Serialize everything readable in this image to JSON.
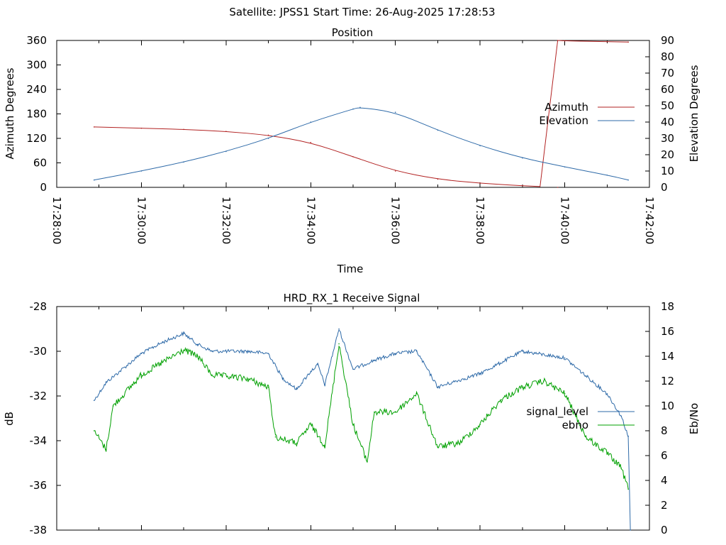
{
  "header": {
    "title": "Satellite: JPSS1    Start Time: 26-Aug-2025 17:28:53"
  },
  "colors": {
    "azimuth": "#b22222",
    "elevation": "#2e6aa8",
    "signal_level": "#2e6aa8",
    "ebno": "#00a000"
  },
  "chart_data": [
    {
      "type": "line",
      "title": "Position",
      "xlabel": "Time",
      "ylabel": "Azimuth Degrees",
      "y2label": "Elevation Degrees",
      "xlim": [
        "17:28:00",
        "17:42:00"
      ],
      "xticks": [
        "17:28:00",
        "17:30:00",
        "17:32:00",
        "17:34:00",
        "17:36:00",
        "17:38:00",
        "17:40:00",
        "17:42:00"
      ],
      "ylim": [
        0,
        360
      ],
      "yticks": [
        "0",
        "60",
        "120",
        "180",
        "240",
        "300",
        "360"
      ],
      "y2lim": [
        0,
        90
      ],
      "y2ticks": [
        "0",
        "10",
        "20",
        "30",
        "40",
        "50",
        "60",
        "70",
        "80",
        "90"
      ],
      "legend_position": "right",
      "grid": false,
      "series": [
        {
          "name": "Azimuth",
          "axis": "y",
          "x": [
            "17:28:53",
            "17:30:00",
            "17:31:00",
            "17:32:00",
            "17:33:00",
            "17:34:00",
            "17:35:00",
            "17:36:00",
            "17:37:00",
            "17:38:00",
            "17:39:00",
            "17:39:50",
            "17:39:50",
            "17:40:00",
            "17:41:00",
            "17:41:30"
          ],
          "values": [
            148,
            145,
            142,
            137,
            128,
            110,
            75,
            40,
            20,
            10,
            4,
            0,
            360,
            359,
            357,
            356
          ]
        },
        {
          "name": "Elevation",
          "axis": "y2",
          "x": [
            "17:28:53",
            "17:30:00",
            "17:31:00",
            "17:32:00",
            "17:33:00",
            "17:34:00",
            "17:35:00",
            "17:35:10",
            "17:36:00",
            "17:37:00",
            "17:38:00",
            "17:39:00",
            "17:40:00",
            "17:41:00",
            "17:41:30"
          ],
          "values": [
            4.5,
            10,
            15.5,
            22,
            30,
            40,
            48,
            49,
            46,
            35,
            25.5,
            18,
            12.5,
            7.5,
            4.5
          ]
        }
      ]
    },
    {
      "type": "line",
      "title": "HRD_RX_1 Receive Signal",
      "ylabel": "dB",
      "y2label": "Eb/No",
      "ylim": [
        -38,
        -28
      ],
      "yticks": [
        "-28",
        "-30",
        "-32",
        "-34",
        "-36",
        "-38"
      ],
      "y2lim": [
        0,
        18
      ],
      "y2ticks": [
        "0",
        "2",
        "4",
        "6",
        "8",
        "10",
        "12",
        "14",
        "16",
        "18"
      ],
      "legend_position": "right",
      "grid": false,
      "series": [
        {
          "name": "signal_level",
          "axis": "y",
          "x": [
            "17:28:53",
            "17:29:10",
            "17:30:00",
            "17:30:30",
            "17:31:00",
            "17:31:20",
            "17:31:40",
            "17:32:30",
            "17:33:00",
            "17:33:20",
            "17:33:40",
            "17:34:00",
            "17:34:10",
            "17:34:20",
            "17:34:40",
            "17:35:00",
            "17:35:30",
            "17:36:00",
            "17:36:30",
            "17:37:00",
            "17:38:00",
            "17:39:00",
            "17:40:00",
            "17:40:30",
            "17:41:00",
            "17:41:20",
            "17:41:30",
            "17:41:33"
          ],
          "values": [
            -32.2,
            -31.4,
            -30.1,
            -29.6,
            -29.2,
            -29.7,
            -30.0,
            -30.0,
            -30.1,
            -31.2,
            -31.7,
            -30.9,
            -30.6,
            -31.5,
            -29.0,
            -30.8,
            -30.4,
            -30.1,
            -30.0,
            -31.6,
            -31.0,
            -30.0,
            -30.3,
            -31.1,
            -31.9,
            -32.9,
            -33.8,
            -38.0
          ]
        },
        {
          "name": "ebno",
          "axis": "y2",
          "x": [
            "17:28:53",
            "17:29:10",
            "17:29:20",
            "17:30:00",
            "17:30:30",
            "17:31:00",
            "17:31:20",
            "17:31:40",
            "17:32:30",
            "17:33:00",
            "17:33:10",
            "17:33:40",
            "17:34:00",
            "17:34:20",
            "17:34:40",
            "17:35:00",
            "17:35:20",
            "17:35:30",
            "17:36:00",
            "17:36:30",
            "17:37:00",
            "17:37:30",
            "17:38:00",
            "17:38:30",
            "17:39:00",
            "17:39:30",
            "17:40:00",
            "17:40:30",
            "17:41:00",
            "17:41:20",
            "17:41:30"
          ],
          "values": [
            8.0,
            6.5,
            10.0,
            12.5,
            13.5,
            14.5,
            14.0,
            12.5,
            12.2,
            11.5,
            7.5,
            7.0,
            8.5,
            6.8,
            15.0,
            8.5,
            5.5,
            9.5,
            9.5,
            11.0,
            6.7,
            7.0,
            8.5,
            10.5,
            11.5,
            12.0,
            11.0,
            7.5,
            6.2,
            5.0,
            3.3
          ]
        }
      ]
    }
  ]
}
